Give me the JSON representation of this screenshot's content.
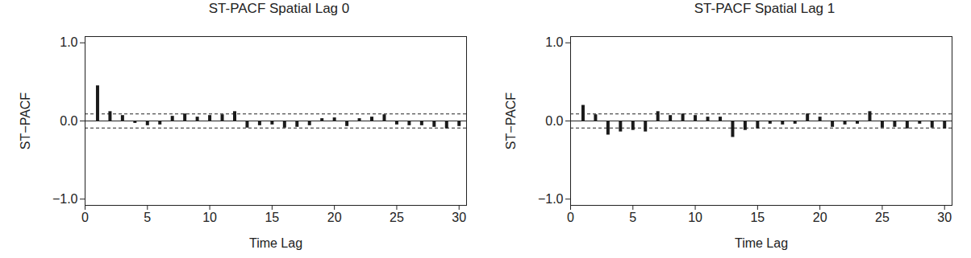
{
  "chart_data": [
    {
      "type": "bar",
      "title": "ST-PACF Spatial Lag 0",
      "xlabel": "Time Lag",
      "ylabel": "ST−PACF",
      "x": [
        1,
        2,
        3,
        4,
        5,
        6,
        7,
        8,
        9,
        10,
        11,
        12,
        13,
        14,
        15,
        16,
        17,
        18,
        19,
        20,
        21,
        22,
        23,
        24,
        25,
        26,
        27,
        28,
        29,
        30
      ],
      "values": [
        0.45,
        0.12,
        0.07,
        -0.03,
        -0.06,
        -0.05,
        0.06,
        0.09,
        0.05,
        0.07,
        0.08,
        0.12,
        -0.09,
        -0.06,
        -0.05,
        -0.09,
        -0.08,
        -0.06,
        0.03,
        0.04,
        -0.07,
        0.03,
        0.05,
        0.08,
        -0.05,
        -0.06,
        -0.06,
        -0.08,
        -0.1,
        -0.07
      ],
      "color": "#1a1a1a",
      "bounds": [
        -0.09,
        0.09
      ],
      "xlim": [
        0,
        30.6
      ],
      "xticks": [
        0,
        5,
        10,
        15,
        20,
        25,
        30
      ],
      "ylim": [
        -1.08,
        1.08
      ],
      "yticks": [
        {
          "value": -1,
          "label": "−1.0"
        },
        {
          "value": 0,
          "label": "0.0"
        },
        {
          "value": 1,
          "label": "1.0"
        }
      ]
    },
    {
      "type": "bar",
      "title": "ST-PACF Spatial Lag 1",
      "xlabel": "Time Lag",
      "ylabel": "ST−PACF",
      "x": [
        1,
        2,
        3,
        4,
        5,
        6,
        7,
        8,
        9,
        10,
        11,
        12,
        13,
        14,
        15,
        16,
        17,
        18,
        19,
        20,
        21,
        22,
        23,
        24,
        25,
        26,
        27,
        28,
        29,
        30
      ],
      "values": [
        0.2,
        0.08,
        -0.18,
        -0.14,
        -0.12,
        -0.14,
        0.12,
        0.07,
        0.09,
        0.07,
        0.05,
        0.05,
        -0.21,
        -0.12,
        -0.1,
        -0.04,
        -0.05,
        -0.04,
        0.09,
        0.05,
        -0.08,
        -0.05,
        -0.04,
        0.12,
        -0.09,
        -0.08,
        -0.1,
        -0.04,
        -0.09,
        -0.1
      ],
      "color": "#1a1a1a",
      "bounds": [
        -0.09,
        0.09
      ],
      "xlim": [
        0,
        30.6
      ],
      "xticks": [
        0,
        5,
        10,
        15,
        20,
        25,
        30
      ],
      "ylim": [
        -1.08,
        1.08
      ],
      "yticks": [
        {
          "value": -1,
          "label": "−1.0"
        },
        {
          "value": 0,
          "label": "0.0"
        },
        {
          "value": 1,
          "label": "1.0"
        }
      ]
    }
  ]
}
